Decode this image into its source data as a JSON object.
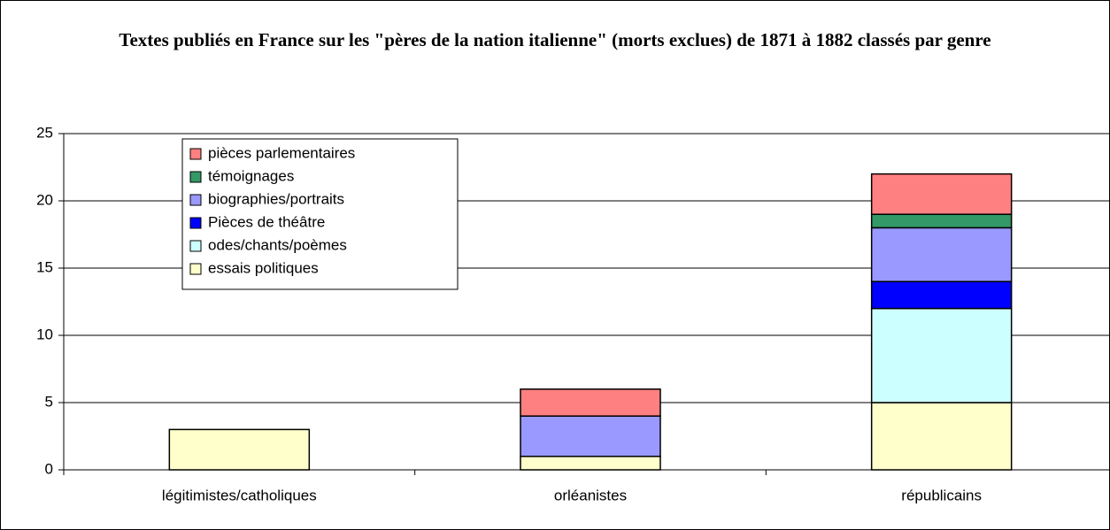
{
  "chart_data": {
    "type": "stacked_bar",
    "title": "Textes publiés en France sur les \"pères de la nation italienne\" (morts exclues) de 1871 à 1882 classés par genre",
    "categories": [
      "légitimistes/catholiques",
      "orléanistes",
      "républicains"
    ],
    "series": [
      {
        "name": "essais politiques",
        "color": "#FFFFCC",
        "values": [
          3,
          1,
          5
        ]
      },
      {
        "name": "odes/chants/poèmes",
        "color": "#CCFFFF",
        "values": [
          0,
          0,
          7
        ]
      },
      {
        "name": "Pièces de théâtre",
        "color": "#0000FF",
        "values": [
          0,
          0,
          2
        ]
      },
      {
        "name": "biographies/portraits",
        "color": "#9999FF",
        "values": [
          0,
          3,
          4
        ]
      },
      {
        "name": "témoignages",
        "color": "#339966",
        "values": [
          0,
          0,
          1
        ]
      },
      {
        "name": "pièces parlementaires",
        "color": "#FF8080",
        "values": [
          0,
          2,
          3
        ]
      }
    ],
    "ylim": [
      0,
      25
    ],
    "yticks": [
      0,
      5,
      10,
      15,
      20,
      25
    ],
    "grid": true,
    "legend": "upper left"
  }
}
